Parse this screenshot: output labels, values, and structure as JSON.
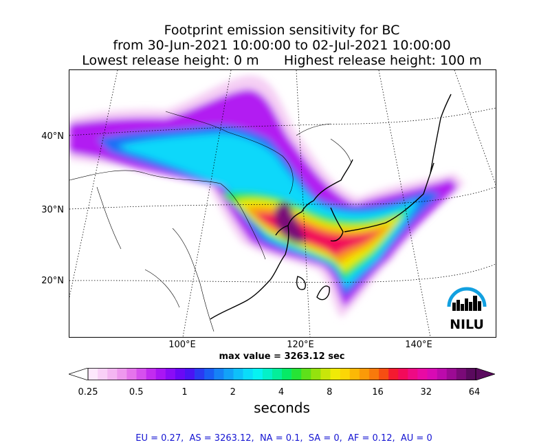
{
  "title": {
    "line1": "Footprint emission sensitivity for BC",
    "line2": "from 30-Jun-2021 10:00:00 to 02-Jul-2021 10:00:00",
    "line3": "Lowest release height: 0 m      Highest release height: 100 m"
  },
  "map": {
    "lat_labels": [
      "40°N",
      "30°N",
      "20°N"
    ],
    "lon_labels": [
      "100°E",
      "120°E",
      "140°E"
    ],
    "logo_text": "NILU"
  },
  "max_value": "max value = 3263.12 sec",
  "colorbar": {
    "ticks": [
      "0.25",
      "0.5",
      "1",
      "2",
      "4",
      "8",
      "16",
      "32",
      "64"
    ],
    "label": "seconds",
    "colors": [
      "#fde8fc",
      "#f9d0f7",
      "#f4b6f2",
      "#ee98ee",
      "#e574ec",
      "#d650ee",
      "#c22cf0",
      "#a916f4",
      "#8a0cf6",
      "#6a08f6",
      "#4a14f4",
      "#2a3af2",
      "#1a5ef4",
      "#1682f6",
      "#12a2f8",
      "#0ec0fa",
      "#0adcfa",
      "#06f2f2",
      "#04f0c8",
      "#04ee9a",
      "#06ea66",
      "#26e436",
      "#5ee01a",
      "#94e20e",
      "#c8e60a",
      "#f0ea06",
      "#fcd606",
      "#fcb806",
      "#fa9a08",
      "#f87a0c",
      "#f64e12",
      "#f41a30",
      "#f20a5a",
      "#ee0a84",
      "#e80aa4",
      "#d80ab4",
      "#bc0aac",
      "#9c0a94",
      "#7a0a78",
      "#5a0a5e"
    ]
  },
  "region_stats": "EU = 0.27,  AS = 3263.12,  NA = 0.1,  SA = 0,  AF = 0.12,  AU = 0"
}
